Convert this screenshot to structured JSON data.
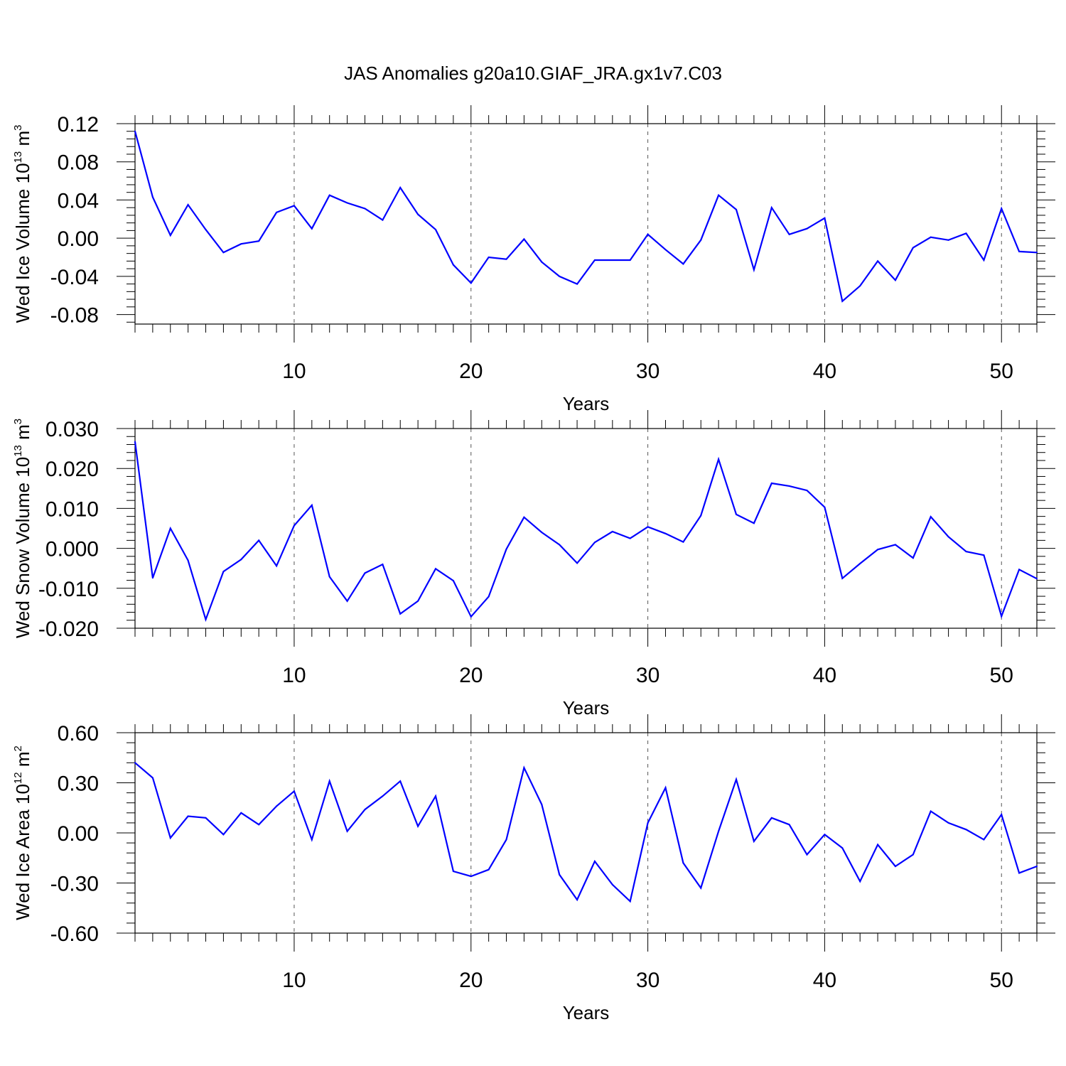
{
  "title": "JAS Anomalies g20a10.GIAF_JRA.gx1v7.C03",
  "line_color": "#0000ff",
  "grid_color": "#555555",
  "chart_data": [
    {
      "type": "line",
      "xlabel": "Years",
      "ylabel": {
        "main": "Wed Ice Volume 10",
        "exponent": "13",
        "unit": " m",
        "unit_exponent": "3"
      },
      "xlim": [
        1,
        52
      ],
      "ylim": [
        -0.09,
        0.12
      ],
      "x_ticks": [
        10,
        20,
        30,
        40,
        50
      ],
      "x_tick_labels": [
        "10",
        "20",
        "30",
        "40",
        "50"
      ],
      "y_ticks": [
        -0.08,
        -0.04,
        0.0,
        0.04,
        0.08,
        0.12
      ],
      "y_tick_labels": [
        "-0.08",
        "-0.04",
        "0.00",
        "0.04",
        "0.08",
        "0.12"
      ],
      "grid": "vertical dashed at labeled x ticks",
      "x": [
        1,
        2,
        3,
        4,
        5,
        6,
        7,
        8,
        9,
        10,
        11,
        12,
        13,
        14,
        15,
        16,
        17,
        18,
        19,
        20,
        21,
        22,
        23,
        24,
        25,
        26,
        27,
        28,
        29,
        30,
        31,
        32,
        33,
        34,
        35,
        36,
        37,
        38,
        39,
        40,
        41,
        42,
        43,
        44,
        45,
        46,
        47,
        48,
        49,
        50,
        51,
        52
      ],
      "values": [
        0.112,
        0.043,
        0.003,
        0.035,
        0.009,
        -0.015,
        -0.006,
        -0.003,
        0.027,
        0.034,
        0.01,
        0.045,
        0.037,
        0.031,
        0.019,
        0.053,
        0.025,
        0.009,
        -0.028,
        -0.047,
        -0.02,
        -0.022,
        -0.001,
        -0.025,
        -0.04,
        -0.048,
        -0.023,
        -0.023,
        -0.023,
        0.004,
        -0.012,
        -0.027,
        -0.002,
        0.045,
        0.03,
        -0.033,
        0.032,
        0.004,
        0.01,
        0.021,
        -0.066,
        -0.05,
        -0.024,
        -0.044,
        -0.01,
        0.001,
        -0.002,
        0.005,
        -0.023,
        0.031,
        -0.014,
        -0.015
      ]
    },
    {
      "type": "line",
      "xlabel": "Years",
      "ylabel": {
        "main": "Wed Snow Volume 10",
        "exponent": "13",
        "unit": " m",
        "unit_exponent": "3"
      },
      "xlim": [
        1,
        52
      ],
      "ylim": [
        -0.02,
        0.03
      ],
      "x_ticks": [
        10,
        20,
        30,
        40,
        50
      ],
      "x_tick_labels": [
        "10",
        "20",
        "30",
        "40",
        "50"
      ],
      "y_ticks": [
        -0.02,
        -0.01,
        0.0,
        0.01,
        0.02,
        0.03
      ],
      "y_tick_labels": [
        "-0.020",
        "-0.010",
        "0.000",
        "0.010",
        "0.020",
        "0.030"
      ],
      "grid": "vertical dashed at labeled x ticks",
      "x": [
        1,
        2,
        3,
        4,
        5,
        6,
        7,
        8,
        9,
        10,
        11,
        12,
        13,
        14,
        15,
        16,
        17,
        18,
        19,
        20,
        21,
        22,
        23,
        24,
        25,
        26,
        27,
        28,
        29,
        30,
        31,
        32,
        33,
        34,
        35,
        36,
        37,
        38,
        39,
        40,
        41,
        42,
        43,
        44,
        45,
        46,
        47,
        48,
        49,
        50,
        51,
        52
      ],
      "values": [
        0.0267,
        -0.0074,
        0.005,
        -0.003,
        -0.0178,
        -0.0058,
        -0.0028,
        0.002,
        -0.0044,
        0.0057,
        0.0108,
        -0.0071,
        -0.0132,
        -0.0062,
        -0.004,
        -0.0164,
        -0.0132,
        -0.0051,
        -0.0081,
        -0.0171,
        -0.0121,
        -0.0002,
        0.0078,
        0.004,
        0.0009,
        -0.0037,
        0.0015,
        0.0042,
        0.0025,
        0.0054,
        0.0037,
        0.0016,
        0.0082,
        0.0223,
        0.0085,
        0.0063,
        0.0163,
        0.0156,
        0.0145,
        0.0103,
        -0.0075,
        -0.0038,
        -0.0003,
        0.0009,
        -0.0024,
        0.0079,
        0.0029,
        -0.0008,
        -0.0017,
        -0.017,
        -0.0053,
        -0.0076
      ]
    },
    {
      "type": "line",
      "xlabel": "Years",
      "ylabel": {
        "main": "Wed Ice Area 10",
        "exponent": "12",
        "unit": " m",
        "unit_exponent": "2"
      },
      "xlim": [
        1,
        52
      ],
      "ylim": [
        -0.6,
        0.6
      ],
      "x_ticks": [
        10,
        20,
        30,
        40,
        50
      ],
      "x_tick_labels": [
        "10",
        "20",
        "30",
        "40",
        "50"
      ],
      "y_ticks": [
        -0.6,
        -0.3,
        0.0,
        0.3,
        0.6
      ],
      "y_tick_labels": [
        "-0.60",
        "-0.30",
        "0.00",
        "0.30",
        "0.60"
      ],
      "grid": "vertical dashed at labeled x ticks",
      "x": [
        1,
        2,
        3,
        4,
        5,
        6,
        7,
        8,
        9,
        10,
        11,
        12,
        13,
        14,
        15,
        16,
        17,
        18,
        19,
        20,
        21,
        22,
        23,
        24,
        25,
        26,
        27,
        28,
        29,
        30,
        31,
        32,
        33,
        34,
        35,
        36,
        37,
        38,
        39,
        40,
        41,
        42,
        43,
        44,
        45,
        46,
        47,
        48,
        49,
        50,
        51,
        52
      ],
      "values": [
        0.42,
        0.33,
        -0.03,
        0.1,
        0.09,
        -0.01,
        0.12,
        0.05,
        0.16,
        0.25,
        -0.04,
        0.31,
        0.01,
        0.14,
        0.22,
        0.31,
        0.04,
        0.22,
        -0.23,
        -0.26,
        -0.22,
        -0.04,
        0.39,
        0.17,
        -0.25,
        -0.4,
        -0.17,
        -0.31,
        -0.41,
        0.06,
        0.27,
        -0.18,
        -0.33,
        0.01,
        0.32,
        -0.05,
        0.09,
        0.05,
        -0.13,
        -0.01,
        -0.09,
        -0.29,
        -0.07,
        -0.2,
        -0.13,
        0.13,
        0.06,
        0.02,
        -0.04,
        0.11,
        -0.24,
        -0.2
      ]
    }
  ]
}
